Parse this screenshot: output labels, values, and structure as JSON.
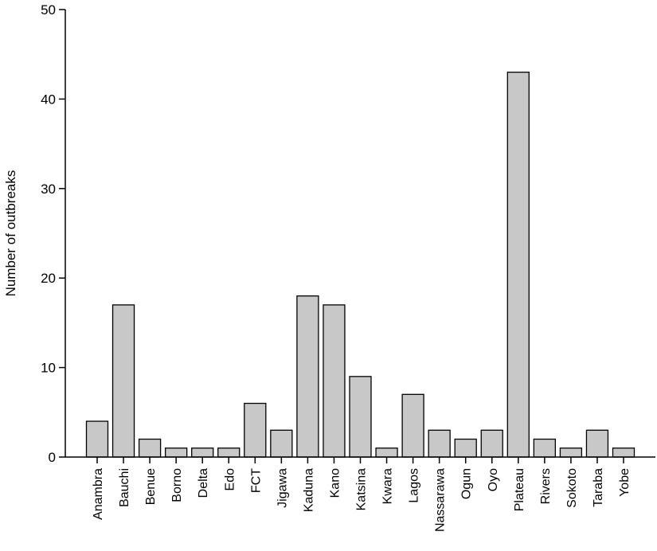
{
  "chart_data": {
    "type": "bar",
    "title": "",
    "xlabel": "",
    "ylabel": "Number of outbreaks",
    "ylim": [
      0,
      50
    ],
    "yticks": [
      0,
      10,
      20,
      30,
      40,
      50
    ],
    "grid": false,
    "legend": "none",
    "bar_fill": "#c8c8c8",
    "bar_stroke": "#000000",
    "categories": [
      "Anambra",
      "Bauchi",
      "Benue",
      "Borno",
      "Delta",
      "Edo",
      "FCT",
      "Jigawa",
      "Kaduna",
      "Kano",
      "Katsina",
      "Kwara",
      "Lagos",
      "Nassarawa",
      "Ogun",
      "Oyo",
      "Plateau",
      "Rivers",
      "Sokoto",
      "Taraba",
      "Yobe"
    ],
    "values": [
      4,
      17,
      2,
      1,
      1,
      1,
      6,
      3,
      18,
      17,
      9,
      1,
      7,
      3,
      2,
      3,
      43,
      2,
      1,
      3,
      1
    ]
  }
}
